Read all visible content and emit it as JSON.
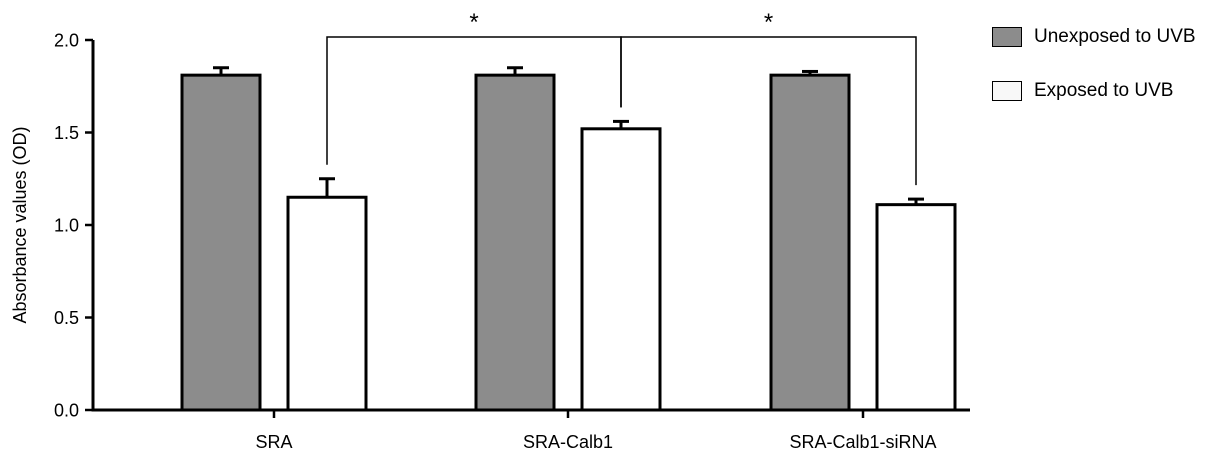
{
  "chart_data": {
    "type": "bar",
    "categories": [
      "SRA",
      "SRA-Calb1",
      "SRA-Calb1-siRNA"
    ],
    "ylabel": "Absorbance values (OD)",
    "ylim": [
      0,
      2.0
    ],
    "yticks": [
      "0.0",
      "0.5",
      "1.0",
      "1.5",
      "2.0"
    ],
    "series": [
      {
        "name": "Unexposed to UVB",
        "color": "#8c8c8c",
        "values": [
          1.81,
          1.81,
          1.81
        ],
        "errors": [
          0.04,
          0.04,
          0.02
        ]
      },
      {
        "name": "Exposed to UVB",
        "color": "#ffffff",
        "values": [
          1.15,
          1.52,
          1.11
        ],
        "errors": [
          0.1,
          0.04,
          0.03
        ]
      }
    ],
    "significance": [
      {
        "from_category": 0,
        "to_category": 1,
        "label": "*"
      },
      {
        "from_category": 1,
        "to_category": 2,
        "label": "*"
      }
    ],
    "legend_position": "top-right",
    "grid": false
  }
}
